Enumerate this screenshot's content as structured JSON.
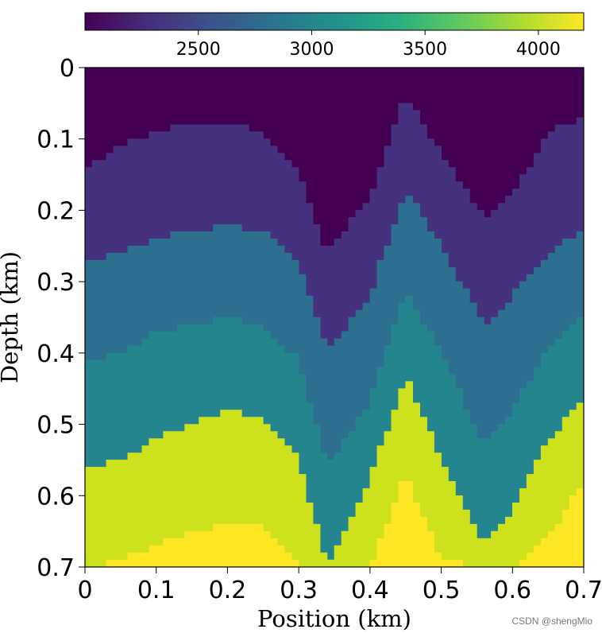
{
  "chart_data": {
    "type": "heatmap",
    "title": "",
    "xlabel": "Position (km)",
    "ylabel": "Depth (km)",
    "xlim": [
      0,
      0.7
    ],
    "ylim": [
      0,
      0.7
    ],
    "x_ticks": [
      "0",
      "0.1",
      "0.2",
      "0.3",
      "0.4",
      "0.5",
      "0.6",
      "0.7"
    ],
    "y_ticks": [
      "0",
      "0.1",
      "0.2",
      "0.3",
      "0.4",
      "0.5",
      "0.6",
      "0.7"
    ],
    "colormap": "viridis",
    "colorbar": {
      "orientation": "horizontal",
      "placement": "top",
      "range": [
        2000,
        4200
      ],
      "tick_values": [
        2500,
        3000,
        3500,
        4000
      ],
      "tick_labels": [
        "2500",
        "3000",
        "3500",
        "4000"
      ]
    },
    "layer_velocities": [
      2000,
      2600,
      3000,
      3200,
      3900,
      4200
    ],
    "layer_colors": [
      "#440154",
      "#46317e",
      "#2c6f8e",
      "#25858e",
      "#cde11d",
      "#fde725"
    ],
    "interfaces_x": [
      0,
      0.05,
      0.1,
      0.15,
      0.2,
      0.25,
      0.3,
      0.34,
      0.4,
      0.45,
      0.5,
      0.56,
      0.6,
      0.65,
      0.7
    ],
    "interfaces_depth": [
      [
        0.14,
        0.11,
        0.09,
        0.08,
        0.08,
        0.09,
        0.14,
        0.26,
        0.18,
        0.04,
        0.12,
        0.21,
        0.18,
        0.09,
        0.07
      ],
      [
        0.27,
        0.26,
        0.24,
        0.23,
        0.22,
        0.23,
        0.27,
        0.4,
        0.32,
        0.17,
        0.25,
        0.36,
        0.32,
        0.26,
        0.23
      ],
      [
        0.41,
        0.4,
        0.37,
        0.36,
        0.35,
        0.36,
        0.41,
        0.56,
        0.47,
        0.31,
        0.4,
        0.53,
        0.48,
        0.39,
        0.35
      ],
      [
        0.56,
        0.55,
        0.52,
        0.5,
        0.48,
        0.49,
        0.55,
        0.7,
        0.58,
        0.43,
        0.55,
        0.67,
        0.62,
        0.52,
        0.47
      ],
      [
        0.7,
        0.69,
        0.67,
        0.65,
        0.64,
        0.64,
        0.7,
        0.7,
        0.7,
        0.57,
        0.69,
        0.7,
        0.7,
        0.66,
        0.58
      ]
    ]
  },
  "watermark": "CSDN @shengMio"
}
